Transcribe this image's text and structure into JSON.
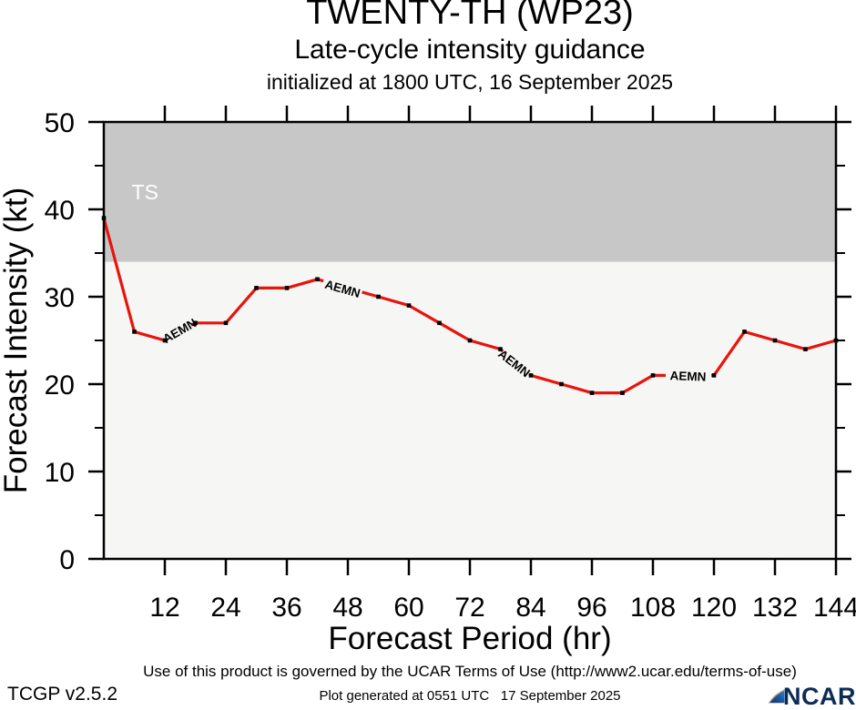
{
  "header": {
    "title": "TWENTY-TH (WP23)",
    "subtitle": "Late-cycle intensity guidance",
    "initialization": "initialized at 1800 UTC, 16 September 2025"
  },
  "chart_data": {
    "type": "line",
    "title": "TWENTY-TH (WP23)",
    "subtitle": "Late-cycle intensity guidance",
    "xlabel": "Forecast Period (hr)",
    "ylabel": "Forecast Intensity (kt)",
    "xlim": [
      0,
      144
    ],
    "ylim": [
      0,
      50
    ],
    "grid": false,
    "x_ticks_major": [
      12,
      24,
      36,
      48,
      60,
      72,
      84,
      96,
      108,
      120,
      132,
      144
    ],
    "y_ticks_major": [
      0,
      10,
      20,
      30,
      40,
      50
    ],
    "y_ticks_minor": [
      5,
      15,
      25,
      35,
      45
    ],
    "threshold_band": {
      "label": "TS",
      "from_kt": 34,
      "to_kt": 50,
      "color": "#c7c7c7",
      "label_color": "#ffffff",
      "label_x_hr": 8.1,
      "label_y_kt": 42.0
    },
    "plot_bg_color": "#f6f6f5",
    "series": [
      {
        "name": "AEMN",
        "color": "#e8140c",
        "x": [
          0,
          6,
          12,
          18,
          24,
          30,
          36,
          42,
          48,
          54,
          60,
          66,
          72,
          78,
          84,
          90,
          96,
          102,
          108,
          114,
          120,
          126,
          132,
          138,
          144
        ],
        "values": [
          39,
          26,
          25,
          27,
          27,
          31,
          31,
          32,
          31,
          30,
          29,
          27,
          25,
          24,
          21,
          20,
          19,
          19,
          21,
          21,
          21,
          26,
          25,
          24,
          25
        ],
        "marker_hidden_at": [
          48,
          114
        ],
        "label_gaps_hr": [
          [
            12.5,
            17.2
          ],
          [
            43.2,
            50.8
          ],
          [
            78.5,
            83.7
          ],
          [
            110.5,
            119.5
          ]
        ],
        "inline_labels": [
          {
            "text": "AEMN",
            "x_hr": 15.0,
            "y_kt": 26.0,
            "angle": -30
          },
          {
            "text": "AEMN",
            "x_hr": 46.9,
            "y_kt": 30.8,
            "angle": 16
          },
          {
            "text": "AEMN",
            "x_hr": 80.6,
            "y_kt": 22.3,
            "angle": 38
          },
          {
            "text": "AEMN",
            "x_hr": 114.9,
            "y_kt": 20.8,
            "angle": 2
          }
        ]
      }
    ]
  },
  "footer": {
    "terms": "Use of this product is governed by the UCAR Terms of Use (http://www2.ucar.edu/terms-of-use)",
    "version": "TCGP v2.5.2",
    "generated": "Plot generated at 0551 UTC   17 September 2025",
    "logo_text": "NCAR"
  },
  "colors": {
    "frame": "#000000",
    "text": "#000000",
    "ncar_navy": "#0c2c56",
    "ncar_blue": "#2e86d6",
    "ncar_orange": "#f5a24a"
  }
}
